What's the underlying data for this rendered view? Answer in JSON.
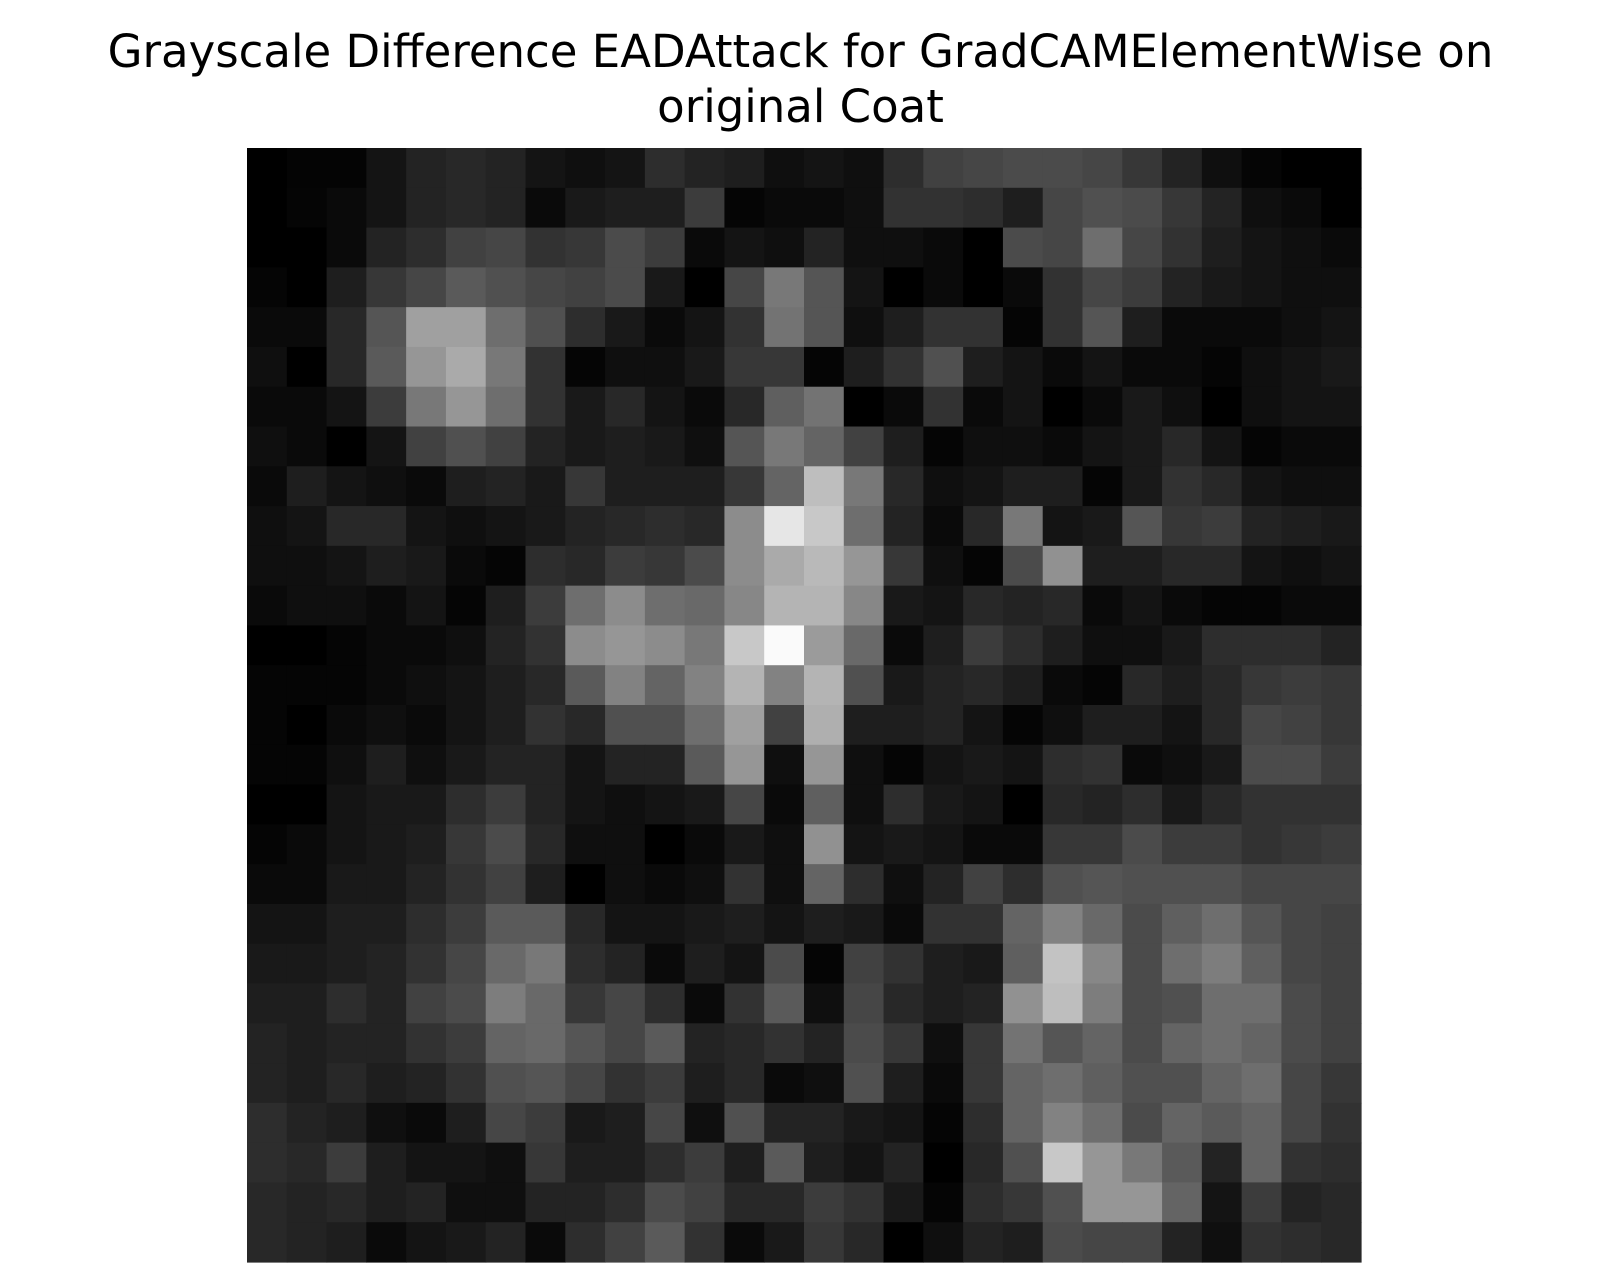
{
  "title_lines": [
    "Grayscale Difference EADAttack for GradCAMElementWise on",
    "original Coat"
  ],
  "chart_data": {
    "type": "heatmap",
    "title": "Grayscale Difference EADAttack for GradCAMElementWise on original Coat",
    "colormap": "gray",
    "axes_visible": false,
    "rows": 28,
    "cols": 28,
    "values": [
      [
        0,
        4,
        4,
        20,
        35,
        40,
        35,
        20,
        15,
        20,
        45,
        35,
        30,
        15,
        20,
        15,
        45,
        65,
        70,
        75,
        75,
        70,
        55,
        35,
        15,
        5,
        0,
        0
      ],
      [
        0,
        5,
        10,
        20,
        35,
        40,
        35,
        10,
        25,
        30,
        30,
        60,
        5,
        10,
        10,
        15,
        50,
        50,
        45,
        30,
        70,
        80,
        75,
        55,
        35,
        15,
        10,
        0
      ],
      [
        0,
        0,
        10,
        35,
        45,
        65,
        70,
        50,
        55,
        75,
        60,
        10,
        20,
        15,
        35,
        15,
        15,
        10,
        0,
        75,
        70,
        110,
        70,
        50,
        30,
        20,
        15,
        10
      ],
      [
        5,
        0,
        30,
        55,
        70,
        90,
        80,
        70,
        65,
        75,
        25,
        0,
        70,
        120,
        85,
        20,
        0,
        10,
        0,
        10,
        50,
        70,
        60,
        35,
        25,
        20,
        15,
        15
      ],
      [
        10,
        10,
        40,
        85,
        160,
        160,
        110,
        80,
        45,
        25,
        10,
        20,
        50,
        115,
        85,
        15,
        30,
        50,
        50,
        5,
        50,
        85,
        30,
        10,
        10,
        10,
        15,
        20
      ],
      [
        15,
        0,
        40,
        90,
        150,
        170,
        120,
        50,
        5,
        15,
        15,
        25,
        55,
        55,
        5,
        30,
        50,
        80,
        30,
        20,
        10,
        20,
        10,
        10,
        5,
        15,
        20,
        25
      ],
      [
        10,
        10,
        20,
        60,
        120,
        150,
        110,
        50,
        25,
        40,
        20,
        10,
        40,
        95,
        115,
        0,
        10,
        50,
        10,
        20,
        0,
        10,
        25,
        15,
        0,
        15,
        20,
        20
      ],
      [
        15,
        10,
        0,
        20,
        65,
        80,
        65,
        35,
        25,
        30,
        25,
        15,
        85,
        120,
        100,
        65,
        30,
        5,
        15,
        15,
        10,
        20,
        25,
        40,
        20,
        5,
        10,
        10
      ],
      [
        10,
        30,
        20,
        15,
        10,
        30,
        35,
        25,
        55,
        30,
        30,
        30,
        55,
        100,
        190,
        120,
        40,
        15,
        20,
        30,
        30,
        5,
        25,
        50,
        40,
        20,
        15,
        15
      ],
      [
        15,
        20,
        40,
        40,
        20,
        15,
        20,
        25,
        35,
        40,
        45,
        40,
        140,
        230,
        200,
        110,
        35,
        10,
        40,
        120,
        20,
        25,
        85,
        55,
        60,
        35,
        30,
        25
      ],
      [
        15,
        15,
        20,
        30,
        25,
        10,
        5,
        45,
        40,
        60,
        55,
        75,
        140,
        170,
        185,
        150,
        55,
        15,
        5,
        75,
        145,
        30,
        30,
        40,
        40,
        20,
        15,
        20
      ],
      [
        10,
        15,
        15,
        10,
        20,
        5,
        30,
        60,
        110,
        140,
        110,
        105,
        135,
        180,
        180,
        135,
        25,
        20,
        40,
        35,
        40,
        10,
        20,
        10,
        5,
        5,
        10,
        10
      ],
      [
        0,
        0,
        5,
        10,
        10,
        15,
        35,
        50,
        140,
        150,
        140,
        120,
        200,
        250,
        155,
        105,
        10,
        30,
        60,
        45,
        30,
        15,
        15,
        25,
        45,
        45,
        45,
        35
      ],
      [
        5,
        5,
        5,
        10,
        15,
        20,
        30,
        40,
        90,
        130,
        100,
        130,
        180,
        130,
        180,
        80,
        25,
        35,
        40,
        30,
        10,
        5,
        40,
        30,
        40,
        55,
        60,
        55
      ],
      [
        5,
        0,
        10,
        15,
        10,
        20,
        30,
        50,
        40,
        80,
        80,
        110,
        160,
        65,
        175,
        30,
        30,
        35,
        20,
        5,
        15,
        30,
        30,
        20,
        40,
        70,
        65,
        55
      ],
      [
        5,
        5,
        15,
        30,
        15,
        25,
        35,
        35,
        20,
        35,
        35,
        90,
        150,
        15,
        150,
        15,
        5,
        20,
        25,
        20,
        45,
        50,
        10,
        15,
        25,
        75,
        75,
        60
      ],
      [
        0,
        0,
        20,
        25,
        25,
        45,
        60,
        35,
        20,
        15,
        20,
        25,
        70,
        10,
        95,
        15,
        45,
        25,
        20,
        0,
        40,
        35,
        45,
        25,
        40,
        50,
        50,
        50
      ],
      [
        5,
        10,
        20,
        25,
        30,
        55,
        75,
        40,
        15,
        15,
        0,
        10,
        25,
        15,
        145,
        20,
        25,
        20,
        10,
        10,
        55,
        55,
        75,
        60,
        60,
        50,
        55,
        60
      ],
      [
        10,
        10,
        25,
        25,
        35,
        50,
        65,
        30,
        0,
        15,
        10,
        15,
        50,
        15,
        100,
        45,
        15,
        35,
        65,
        45,
        80,
        85,
        80,
        80,
        80,
        70,
        70,
        70
      ],
      [
        20,
        20,
        30,
        30,
        45,
        60,
        90,
        90,
        40,
        20,
        20,
        25,
        30,
        20,
        30,
        25,
        10,
        50,
        50,
        100,
        130,
        105,
        75,
        95,
        110,
        85,
        70,
        65
      ],
      [
        25,
        25,
        30,
        35,
        50,
        70,
        105,
        120,
        45,
        35,
        10,
        30,
        20,
        75,
        5,
        65,
        50,
        30,
        25,
        95,
        195,
        135,
        75,
        110,
        125,
        95,
        70,
        65
      ],
      [
        30,
        30,
        45,
        35,
        65,
        75,
        125,
        105,
        55,
        70,
        45,
        10,
        50,
        90,
        15,
        70,
        40,
        30,
        35,
        145,
        190,
        125,
        75,
        80,
        110,
        110,
        75,
        65
      ],
      [
        35,
        30,
        35,
        35,
        50,
        60,
        100,
        105,
        85,
        70,
        90,
        35,
        40,
        50,
        35,
        75,
        55,
        15,
        55,
        115,
        85,
        100,
        75,
        100,
        110,
        100,
        75,
        65
      ],
      [
        35,
        30,
        40,
        30,
        35,
        50,
        80,
        85,
        70,
        50,
        60,
        30,
        40,
        10,
        15,
        80,
        30,
        10,
        55,
        100,
        110,
        95,
        80,
        80,
        100,
        110,
        70,
        55
      ],
      [
        45,
        35,
        30,
        15,
        10,
        30,
        70,
        60,
        25,
        30,
        70,
        15,
        80,
        35,
        35,
        25,
        20,
        5,
        45,
        100,
        130,
        110,
        75,
        100,
        90,
        100,
        70,
        50
      ],
      [
        45,
        40,
        60,
        30,
        20,
        20,
        15,
        55,
        30,
        30,
        45,
        60,
        30,
        90,
        30,
        20,
        35,
        0,
        40,
        80,
        200,
        150,
        120,
        90,
        35,
        100,
        50,
        45
      ],
      [
        40,
        35,
        40,
        30,
        35,
        15,
        15,
        35,
        35,
        45,
        75,
        65,
        40,
        40,
        60,
        50,
        25,
        5,
        45,
        55,
        80,
        150,
        150,
        100,
        20,
        60,
        35,
        40
      ],
      [
        40,
        35,
        30,
        10,
        20,
        25,
        35,
        10,
        45,
        65,
        90,
        50,
        10,
        25,
        55,
        40,
        0,
        15,
        35,
        30,
        75,
        70,
        70,
        35,
        15,
        50,
        45,
        40
      ]
    ],
    "vmin": 0,
    "vmax": 255
  }
}
